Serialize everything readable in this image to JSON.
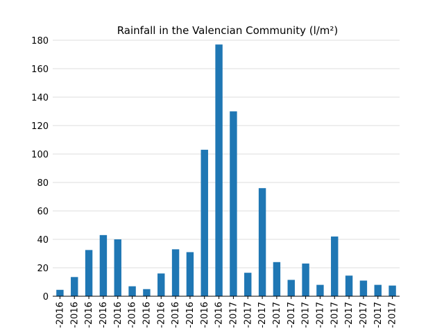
{
  "chart_data": {
    "type": "bar",
    "title": "Rainfall in the Valencian Community (l/m²)",
    "xlabel": "",
    "ylabel": "",
    "ylim": [
      0,
      180
    ],
    "yticks": [
      0,
      20,
      40,
      60,
      80,
      100,
      120,
      140,
      160,
      180
    ],
    "grid": "horizontal",
    "bar_color": "#1f77b4",
    "categories": [
      "-2016",
      "-2016",
      "-2016",
      "-2016",
      "-2016",
      "-2016",
      "-2016",
      "-2016",
      "-2016",
      "-2016",
      "-2016",
      "-2016",
      "-2017",
      "-2017",
      "-2017",
      "-2017",
      "-2017",
      "-2017",
      "-2017",
      "-2017",
      "-2017",
      "-2017",
      "-2017",
      "-2017"
    ],
    "values": [
      4.5,
      13.5,
      32.5,
      43,
      40,
      7,
      5,
      16,
      33,
      31,
      103,
      177,
      130,
      16.5,
      76,
      24,
      11.5,
      23,
      8,
      42,
      14.5,
      11,
      8,
      7.5
    ]
  }
}
